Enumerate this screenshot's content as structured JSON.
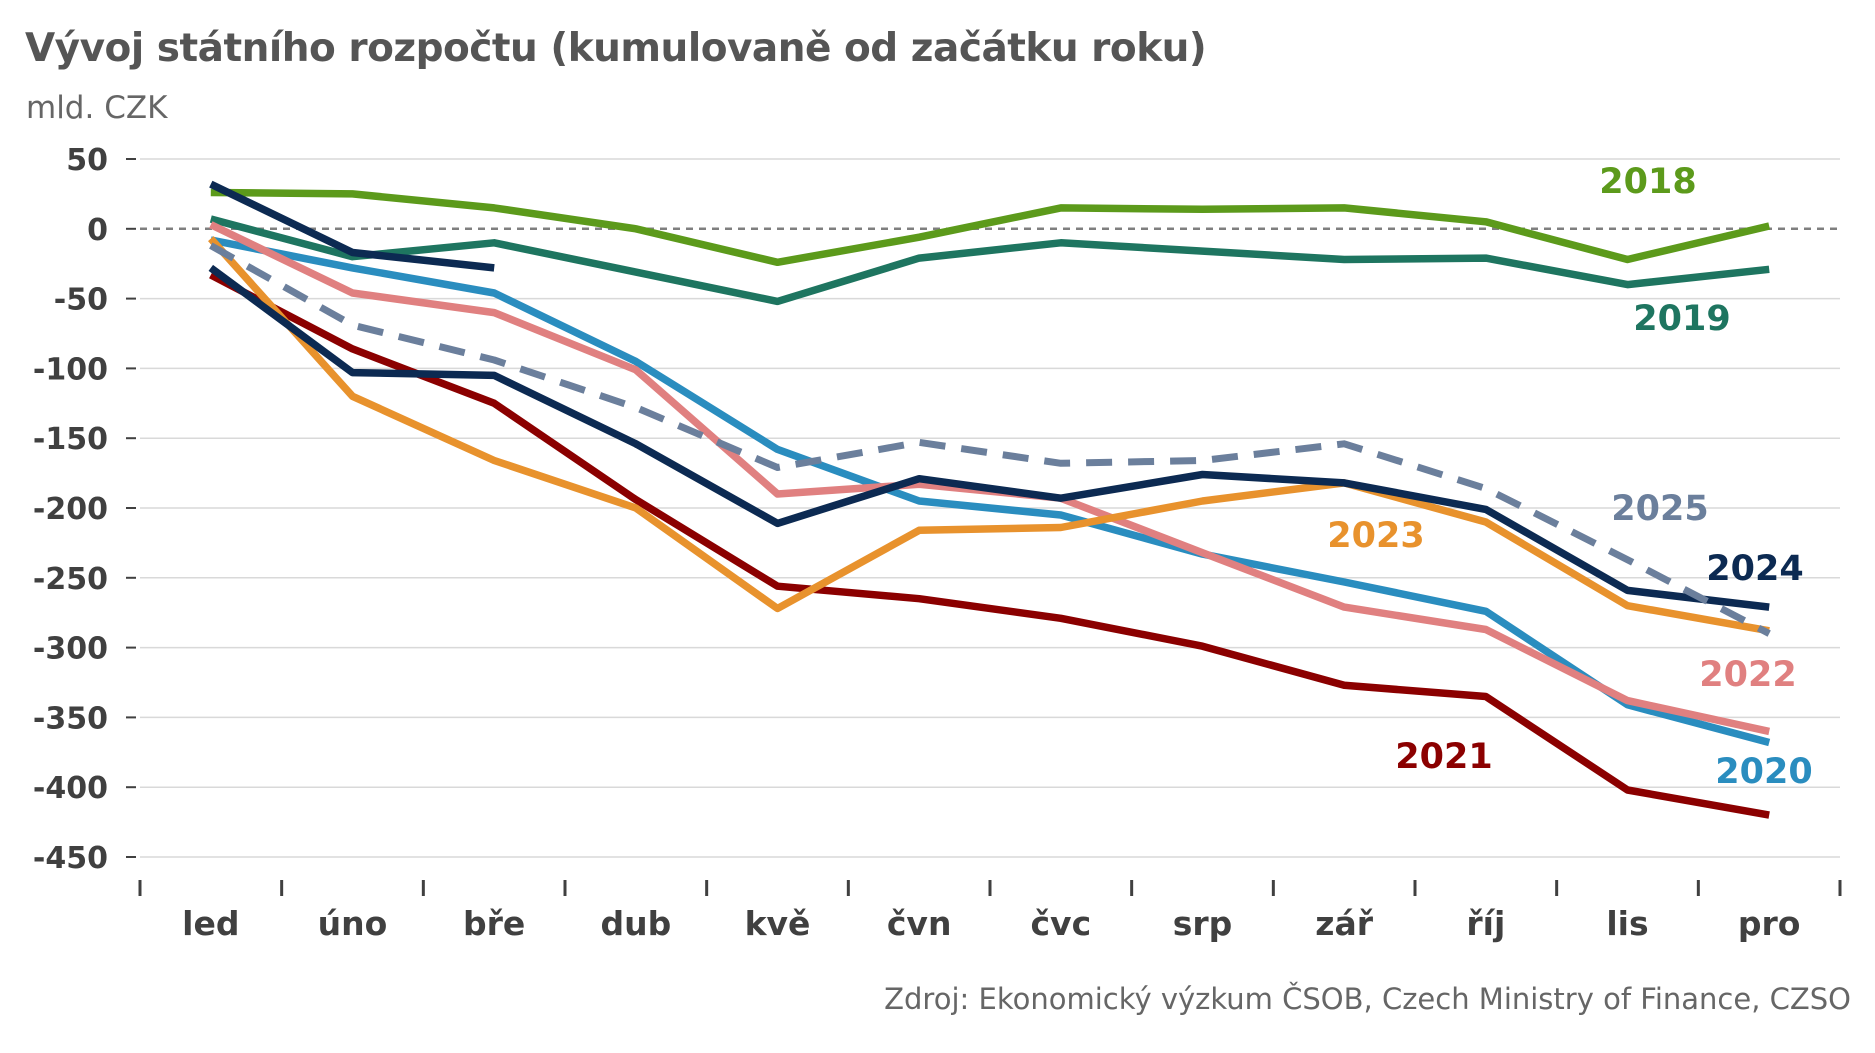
{
  "title": "Vývoj státního rozpočtu (kumulovaně od začátku roku)",
  "unit_label": "mld. CZK",
  "source": "Zdroj: Ekonomický výzkum ČSOB, Czech Ministry of Finance, CZSO",
  "chart_data": {
    "type": "line",
    "title": "Vývoj státního rozpočtu (kumulovaně od začátku roku)",
    "ylabel": "mld. CZK",
    "xlabel": "",
    "ylim": [
      -450,
      50
    ],
    "yticks": [
      50,
      0,
      -50,
      -100,
      -150,
      -200,
      -250,
      -300,
      -350,
      -400,
      -450
    ],
    "zero_line": "dashed",
    "grid": "horizontal",
    "categories": [
      "led",
      "úno",
      "bře",
      "dub",
      "kvě",
      "čvn",
      "čvc",
      "srp",
      "zář",
      "říj",
      "lis",
      "pro"
    ],
    "series": [
      {
        "name": "2018",
        "color": "#5c9a1b",
        "dash": false,
        "values": [
          26,
          25,
          15,
          0,
          -24,
          -6,
          15,
          14,
          15,
          5,
          -22,
          2
        ]
      },
      {
        "name": "2019",
        "color": "#1e7560",
        "dash": false,
        "values": [
          7,
          -20,
          -10,
          -31,
          -52,
          -21,
          -10,
          -16,
          -22,
          -21,
          -40,
          -29
        ]
      },
      {
        "name": "2020",
        "color": "#2a8dbf",
        "dash": false,
        "values": [
          -8,
          -28,
          -46,
          -95,
          -158,
          -195,
          -205,
          -233,
          -253,
          -274,
          -341,
          -368
        ]
      },
      {
        "name": "2021",
        "color": "#8b0000",
        "dash": false,
        "values": [
          -33,
          -86,
          -125,
          -194,
          -256,
          -265,
          -279,
          -299,
          -327,
          -335,
          -402,
          -420
        ]
      },
      {
        "name": "2022",
        "color": "#e08080",
        "dash": false,
        "values": [
          3,
          -46,
          -60,
          -101,
          -190,
          -183,
          -193,
          -232,
          -271,
          -287,
          -338,
          -360
        ]
      },
      {
        "name": "2023",
        "color": "#e8922d",
        "dash": false,
        "values": [
          -7,
          -120,
          -166,
          -200,
          -272,
          -216,
          -214,
          -195,
          -182,
          -210,
          -270,
          -288
        ]
      },
      {
        "name": "2024",
        "color": "#0c2a52",
        "dash": false,
        "values": [
          -28,
          -103,
          -105,
          -154,
          -211,
          -179,
          -193,
          -176,
          -182,
          -201,
          -259,
          -271
        ]
      },
      {
        "name": "2024",
        "color": "#0c2a52",
        "dash": false,
        "values": [
          32,
          -17,
          -28,
          null,
          null,
          null,
          null,
          null,
          null,
          null,
          null,
          null
        ]
      },
      {
        "name": "2025",
        "color": "#6b7f9c",
        "dash": true,
        "values": [
          -12,
          -69,
          -94,
          -128,
          -171,
          -153,
          -168,
          -166,
          -154,
          -186,
          -237,
          -290
        ]
      }
    ],
    "series_labels": [
      {
        "text": "2018",
        "color": "#5c9a1b"
      },
      {
        "text": "2019",
        "color": "#1e7560"
      },
      {
        "text": "2025",
        "color": "#6b7f9c"
      },
      {
        "text": "2023",
        "color": "#e8922d"
      },
      {
        "text": "2024",
        "color": "#0c2a52"
      },
      {
        "text": "2022",
        "color": "#e08080"
      },
      {
        "text": "2021",
        "color": "#8b0000"
      },
      {
        "text": "2020",
        "color": "#2a8dbf"
      }
    ],
    "axis_color": "#404040",
    "gridline_color": "#d9d9d9",
    "zero_line_color": "#7f7f7f"
  }
}
